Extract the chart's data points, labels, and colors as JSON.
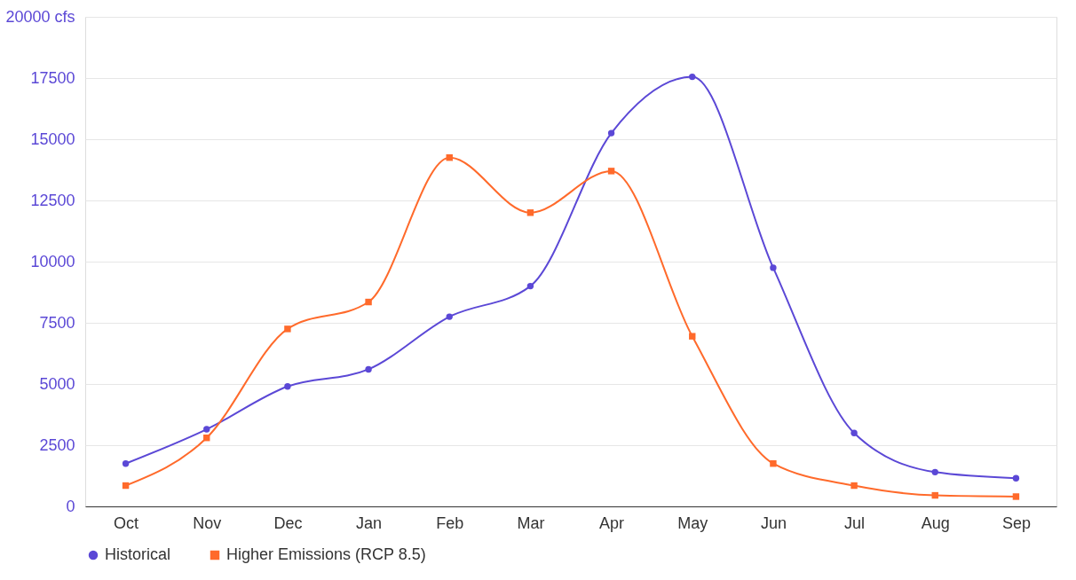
{
  "chart_data": {
    "type": "line",
    "categories": [
      "Oct",
      "Nov",
      "Dec",
      "Jan",
      "Feb",
      "Mar",
      "Apr",
      "May",
      "Jun",
      "Jul",
      "Aug",
      "Sep"
    ],
    "series": [
      {
        "name": "Historical",
        "color": "#5b48d6",
        "marker": "circle",
        "values": [
          1750,
          3150,
          4900,
          5600,
          7750,
          9000,
          15250,
          17550,
          9750,
          3000,
          1400,
          1150
        ]
      },
      {
        "name": "Higher Emissions (RCP 8.5)",
        "color": "#ff6a2b",
        "marker": "square",
        "values": [
          850,
          2800,
          7250,
          8350,
          14250,
          12000,
          13700,
          6950,
          1750,
          850,
          450,
          400
        ]
      }
    ],
    "ylim": [
      0,
      20000
    ],
    "yticks": [
      0,
      2500,
      5000,
      7500,
      10000,
      12500,
      15000,
      17500,
      {
        "value": 20000,
        "label": "20000 cfs"
      }
    ],
    "grid": "y",
    "legend": "bottom",
    "line_style": "solid"
  }
}
